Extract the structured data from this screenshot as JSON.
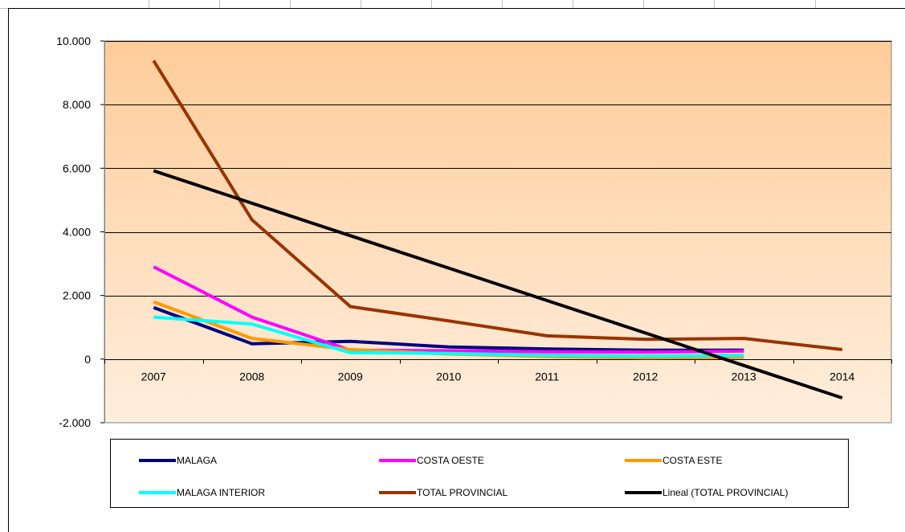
{
  "chart_data": {
    "type": "line",
    "categories": [
      "2007",
      "2008",
      "2009",
      "2010",
      "2011",
      "2012",
      "2013",
      "2014"
    ],
    "ylim": [
      -2000,
      10000
    ],
    "yticks": [
      -2000,
      0,
      2000,
      4000,
      6000,
      8000,
      10000
    ],
    "ytick_labels": [
      "-2.000",
      "0",
      "2.000",
      "4.000",
      "6.000",
      "8.000",
      "10.000"
    ],
    "grid": true,
    "legend_position": "bottom",
    "series": [
      {
        "name": "MALAGA",
        "color": "#000080",
        "values": [
          1620,
          480,
          560,
          380,
          320,
          280,
          280,
          null
        ]
      },
      {
        "name": "COSTA OESTE",
        "color": "#ff00ff",
        "values": [
          2900,
          1320,
          280,
          260,
          230,
          220,
          250,
          null
        ]
      },
      {
        "name": "COSTA ESTE",
        "color": "#ff9900",
        "values": [
          1800,
          650,
          300,
          160,
          80,
          40,
          60,
          null
        ]
      },
      {
        "name": "MALAGA INTERIOR",
        "color": "#00ffff",
        "values": [
          1320,
          1100,
          200,
          180,
          120,
          100,
          120,
          null
        ]
      },
      {
        "name": "TOTAL PROVINCIAL",
        "color": "#993300",
        "values": [
          9380,
          4380,
          1650,
          1200,
          730,
          620,
          650,
          300
        ]
      },
      {
        "name": "Lineal (TOTAL PROVINCIAL)",
        "color": "#000000",
        "values": [
          5920,
          4900,
          3880,
          2860,
          1840,
          820,
          -200,
          -1220
        ]
      }
    ]
  }
}
